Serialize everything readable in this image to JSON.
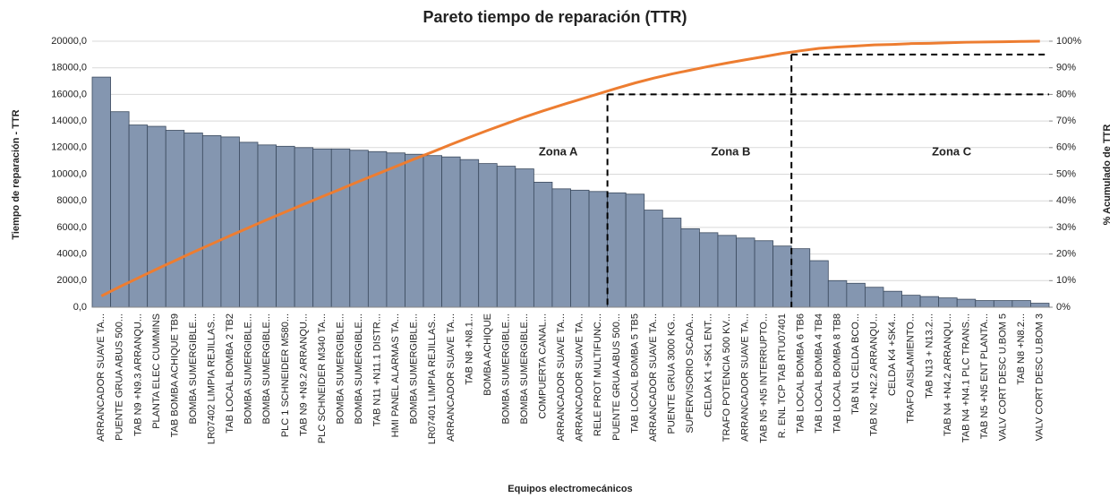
{
  "chart_data": {
    "type": "pareto",
    "title": "Pareto tiempo de reparación (TTR)",
    "x_label": "Equipos electromecánicos",
    "y_label": "Tiempo de reparación - TTR",
    "y2_label": "% Acumulado de TTR",
    "categories": [
      "ARRANCADOR SUAVE TA...",
      "PUENTE GRUA ABUS 500...",
      "TAB N9 +N9.3 ARRANQU...",
      "PLANTA ELEC CUMMINS",
      "TAB BOMBA ACHIQUE TB9",
      "BOMBA SUMERGIBLE...",
      "LR07402 LIMPIA REJILLAS...",
      "TAB LOCAL BOMBA 2 TB2",
      "BOMBA SUMERGIBLE...",
      "BOMBA SUMERGIBLE...",
      "PLC 1 SCHNEIDER M580...",
      "TAB N9 +N9.2 ARRANQU...",
      "PLC SCHNEIDER M340 TA...",
      "BOMBA SUMERGIBLE...",
      "BOMBA SUMERGIBLE...",
      "TAB N11 +N11.1 DISTR...",
      "HMI PANEL ALARMAS TA...",
      "BOMBA SUMERGIBLE...",
      "LR07401 LIMPIA REJILLAS...",
      "ARRANCADOR SUAVE TA...",
      "TAB N8 +N8.1...",
      "BOMBA ACHIQUE",
      "BOMBA SUMERGIBLE...",
      "BOMBA SUMERGIBLE...",
      "COMPUERTA CANAL...",
      "ARRANCADOR SUAVE TA...",
      "ARRANCADOR SUAVE TA...",
      "RELE PROT MULTIFUNC...",
      "PUENTE GRUA ABUS 500...",
      "TAB LOCAL BOMBA 5 TB5",
      "ARRANCADOR SUAVE TA...",
      "PUENTE GRUA 3000 KG...",
      "SUPERVISORIO SCADA...",
      "CELDA K1 +SK1 ENT...",
      "TRAFO POTENCIA 500 KV...",
      "ARRANCADOR SUAVE TA...",
      "TAB N5 +N5 INTERRUPTO...",
      "R. ENL TCP TAB RTU07401",
      "TAB LOCAL BOMBA 6 TB6",
      "TAB LOCAL BOMBA 4 TB4",
      "TAB LOCAL BOMBA 8 TB8",
      "TAB N1 CELDA BCO...",
      "TAB N2 +N2.2 ARRANQU...",
      "CELDA K4 +SK4...",
      "TRAFO AISLAMIENTO...",
      "TAB N13 + N13.2...",
      "TAB N4 +N4.2 ARRANQU...",
      "TAB N4 +N4.1 PLC TRANS...",
      "TAB N5 +N5 ENT PLANTA...",
      "VALV CORT DESC U.BOM 5",
      "TAB N8 +N8.2...",
      "VALV CORT DESC U.BOM 3"
    ],
    "series": [
      {
        "name": "TTR",
        "color": "#8496b0",
        "values": [
          17300,
          14700,
          13700,
          13600,
          13300,
          13100,
          12900,
          12800,
          12400,
          12200,
          12100,
          12000,
          11900,
          11900,
          11800,
          11700,
          11600,
          11500,
          11400,
          11300,
          11100,
          10800,
          10600,
          10400,
          9400,
          8900,
          8800,
          8700,
          8600,
          8500,
          7300,
          6700,
          5900,
          5600,
          5400,
          5200,
          5000,
          4600,
          4400,
          3500,
          2000,
          1800,
          1500,
          1200,
          900,
          800,
          700,
          600,
          500,
          500,
          500,
          300
        ]
      },
      {
        "name": "% Acumulado",
        "color": "#ed7d31",
        "axis": "y2",
        "values": [
          4.2,
          7.7,
          11.0,
          14.3,
          17.5,
          20.7,
          23.8,
          26.9,
          29.9,
          32.9,
          35.8,
          38.7,
          41.6,
          44.4,
          47.3,
          50.1,
          52.9,
          55.7,
          58.4,
          61.2,
          63.9,
          66.5,
          69.0,
          71.5,
          73.8,
          76.0,
          78.1,
          80.2,
          82.3,
          84.3,
          86.1,
          87.7,
          89.1,
          90.5,
          91.8,
          93.0,
          94.2,
          95.4,
          96.4,
          97.3,
          97.8,
          98.2,
          98.6,
          98.8,
          99.1,
          99.2,
          99.4,
          99.6,
          99.7,
          99.8,
          99.9,
          100.0
        ]
      }
    ],
    "ylim": [
      0,
      20000
    ],
    "yticks": [
      {
        "value": 0,
        "label": "0,0"
      },
      {
        "value": 2000,
        "label": "2000,0"
      },
      {
        "value": 4000,
        "label": "4000,0"
      },
      {
        "value": 6000,
        "label": "6000,0"
      },
      {
        "value": 8000,
        "label": "8000,0"
      },
      {
        "value": 10000,
        "label": "10000,0"
      },
      {
        "value": 12000,
        "label": "12000,0"
      },
      {
        "value": 14000,
        "label": "14000,0"
      },
      {
        "value": 16000,
        "label": "16000,0"
      },
      {
        "value": 18000,
        "label": "18000,0"
      },
      {
        "value": 20000,
        "label": "20000,0"
      }
    ],
    "y2lim": [
      0,
      100
    ],
    "y2ticks": [
      {
        "value": 0,
        "label": "0%"
      },
      {
        "value": 10,
        "label": "10%"
      },
      {
        "value": 20,
        "label": "20%"
      },
      {
        "value": 30,
        "label": "30%"
      },
      {
        "value": 40,
        "label": "40%"
      },
      {
        "value": 50,
        "label": "50%"
      },
      {
        "value": 60,
        "label": "60%"
      },
      {
        "value": 70,
        "label": "70%"
      },
      {
        "value": 80,
        "label": "80%"
      },
      {
        "value": 90,
        "label": "90%"
      },
      {
        "value": 100,
        "label": "100%"
      }
    ],
    "grid": true,
    "zones": [
      {
        "label": "Zona A",
        "limit": 80
      },
      {
        "label": "Zona B",
        "limit": 95
      },
      {
        "label": "Zona C"
      }
    ]
  }
}
